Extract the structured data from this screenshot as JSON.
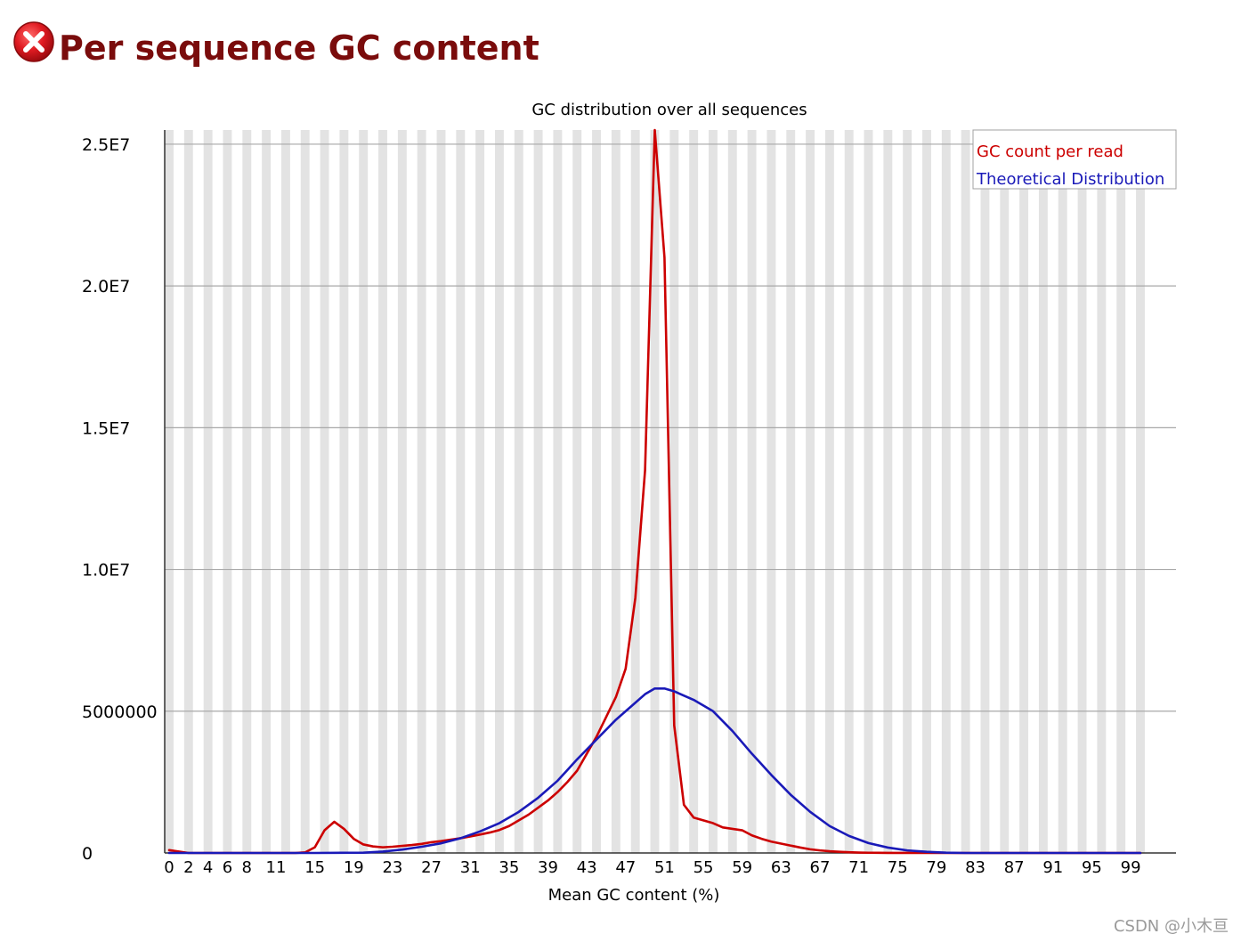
{
  "header": {
    "status": "fail",
    "status_icon": "error-cross-icon",
    "status_color": "#d3141a",
    "title": "Per sequence GC content",
    "title_color": "#7a0c0c"
  },
  "chart_data": {
    "type": "line",
    "title": "GC distribution over all sequences",
    "xlabel": "Mean GC content (%)",
    "ylabel": "",
    "xlim": [
      0,
      100
    ],
    "ylim": [
      0,
      25500000
    ],
    "x_tick_labels": [
      "0",
      "2",
      "4",
      "6",
      "8",
      "11",
      "15",
      "19",
      "23",
      "27",
      "31",
      "35",
      "39",
      "43",
      "47",
      "51",
      "55",
      "59",
      "63",
      "67",
      "71",
      "75",
      "79",
      "83",
      "87",
      "91",
      "95",
      "99"
    ],
    "y_ticks": [
      {
        "value": 0,
        "label": "0"
      },
      {
        "value": 5000000,
        "label": "5000000"
      },
      {
        "value": 10000000,
        "label": "1.0E7"
      },
      {
        "value": 15000000,
        "label": "1.5E7"
      },
      {
        "value": 20000000,
        "label": "2.0E7"
      },
      {
        "value": 25000000,
        "label": "2.5E7"
      }
    ],
    "grid": true,
    "legend_position": "top-right",
    "series": [
      {
        "name": "GC count per read",
        "color": "#cc0000",
        "points": [
          [
            0,
            100000
          ],
          [
            1,
            50000
          ],
          [
            2,
            0
          ],
          [
            3,
            0
          ],
          [
            4,
            0
          ],
          [
            5,
            0
          ],
          [
            6,
            0
          ],
          [
            7,
            0
          ],
          [
            8,
            0
          ],
          [
            9,
            0
          ],
          [
            10,
            0
          ],
          [
            11,
            0
          ],
          [
            12,
            0
          ],
          [
            13,
            0
          ],
          [
            14,
            20000
          ],
          [
            15,
            200000
          ],
          [
            16,
            800000
          ],
          [
            17,
            1100000
          ],
          [
            18,
            850000
          ],
          [
            19,
            500000
          ],
          [
            20,
            300000
          ],
          [
            21,
            230000
          ],
          [
            22,
            200000
          ],
          [
            23,
            220000
          ],
          [
            24,
            250000
          ],
          [
            25,
            280000
          ],
          [
            26,
            320000
          ],
          [
            27,
            380000
          ],
          [
            28,
            420000
          ],
          [
            29,
            470000
          ],
          [
            30,
            520000
          ],
          [
            31,
            580000
          ],
          [
            32,
            650000
          ],
          [
            33,
            720000
          ],
          [
            34,
            810000
          ],
          [
            35,
            950000
          ],
          [
            36,
            1150000
          ],
          [
            37,
            1350000
          ],
          [
            38,
            1600000
          ],
          [
            39,
            1850000
          ],
          [
            40,
            2150000
          ],
          [
            41,
            2500000
          ],
          [
            42,
            2900000
          ],
          [
            43,
            3500000
          ],
          [
            44,
            4100000
          ],
          [
            45,
            4800000
          ],
          [
            46,
            5500000
          ],
          [
            47,
            6500000
          ],
          [
            48,
            9000000
          ],
          [
            49,
            13500000
          ],
          [
            50,
            25500000
          ],
          [
            51,
            21000000
          ],
          [
            52,
            4500000
          ],
          [
            53,
            1700000
          ],
          [
            54,
            1250000
          ],
          [
            55,
            1150000
          ],
          [
            56,
            1050000
          ],
          [
            57,
            900000
          ],
          [
            58,
            850000
          ],
          [
            59,
            800000
          ],
          [
            60,
            620000
          ],
          [
            61,
            500000
          ],
          [
            62,
            400000
          ],
          [
            63,
            330000
          ],
          [
            64,
            260000
          ],
          [
            65,
            190000
          ],
          [
            66,
            130000
          ],
          [
            67,
            90000
          ],
          [
            68,
            60000
          ],
          [
            69,
            40000
          ],
          [
            70,
            25000
          ],
          [
            71,
            15000
          ],
          [
            72,
            8000
          ],
          [
            73,
            5000
          ],
          [
            74,
            3000
          ],
          [
            75,
            2000
          ],
          [
            76,
            1000
          ],
          [
            77,
            0
          ],
          [
            78,
            0
          ],
          [
            79,
            0
          ],
          [
            80,
            0
          ],
          [
            81,
            0
          ],
          [
            82,
            0
          ],
          [
            83,
            0
          ],
          [
            84,
            0
          ],
          [
            85,
            0
          ],
          [
            86,
            0
          ],
          [
            87,
            0
          ],
          [
            88,
            0
          ],
          [
            89,
            0
          ],
          [
            90,
            0
          ],
          [
            91,
            0
          ],
          [
            92,
            0
          ],
          [
            93,
            0
          ],
          [
            94,
            0
          ],
          [
            95,
            0
          ],
          [
            96,
            0
          ],
          [
            97,
            0
          ],
          [
            98,
            0
          ],
          [
            99,
            0
          ],
          [
            100,
            0
          ]
        ]
      },
      {
        "name": "Theoretical Distribution",
        "color": "#1a1ab8",
        "points": [
          [
            0,
            0
          ],
          [
            5,
            0
          ],
          [
            10,
            0
          ],
          [
            15,
            0
          ],
          [
            20,
            10000
          ],
          [
            22,
            50000
          ],
          [
            24,
            120000
          ],
          [
            26,
            220000
          ],
          [
            28,
            340000
          ],
          [
            30,
            520000
          ],
          [
            32,
            760000
          ],
          [
            34,
            1050000
          ],
          [
            36,
            1450000
          ],
          [
            38,
            1950000
          ],
          [
            40,
            2550000
          ],
          [
            42,
            3300000
          ],
          [
            44,
            4000000
          ],
          [
            46,
            4700000
          ],
          [
            48,
            5300000
          ],
          [
            49,
            5600000
          ],
          [
            50,
            5800000
          ],
          [
            51,
            5800000
          ],
          [
            52,
            5700000
          ],
          [
            54,
            5400000
          ],
          [
            56,
            5000000
          ],
          [
            58,
            4300000
          ],
          [
            60,
            3500000
          ],
          [
            62,
            2750000
          ],
          [
            64,
            2050000
          ],
          [
            66,
            1450000
          ],
          [
            68,
            950000
          ],
          [
            70,
            600000
          ],
          [
            72,
            350000
          ],
          [
            74,
            190000
          ],
          [
            76,
            90000
          ],
          [
            78,
            40000
          ],
          [
            80,
            10000
          ],
          [
            82,
            0
          ],
          [
            85,
            0
          ],
          [
            90,
            0
          ],
          [
            95,
            0
          ],
          [
            100,
            0
          ]
        ]
      }
    ]
  },
  "watermark": "CSDN @小木亘"
}
